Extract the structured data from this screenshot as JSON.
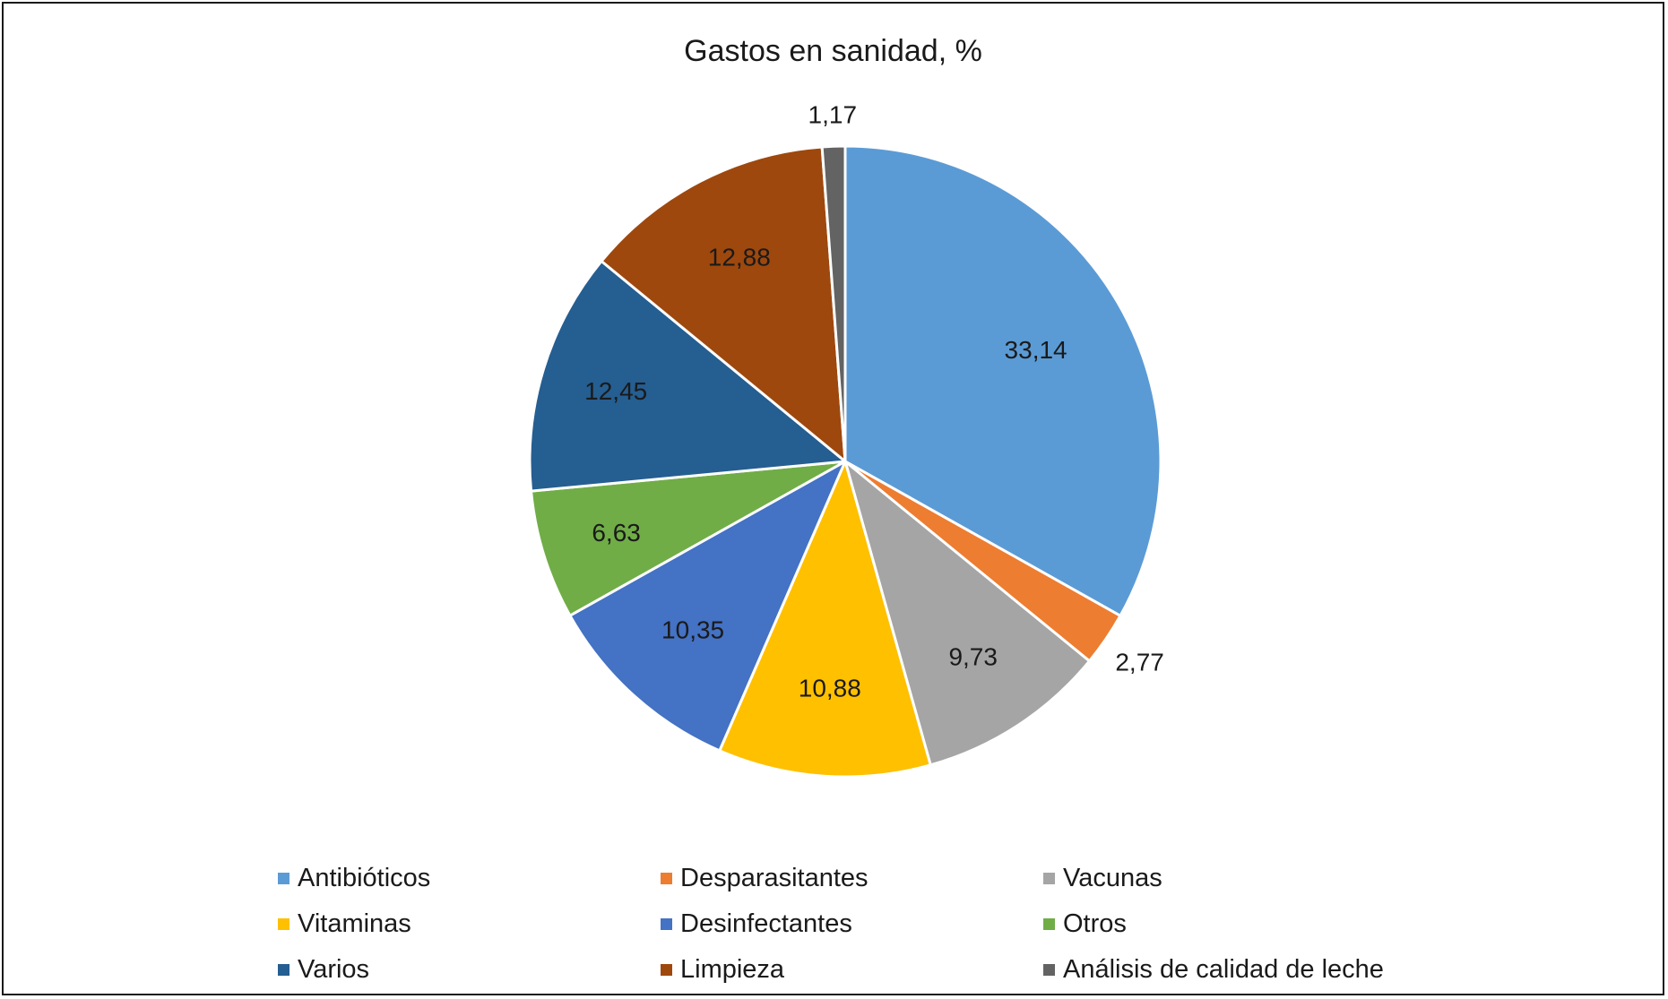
{
  "chart_data": {
    "type": "pie",
    "title": "Gastos en sanidad, %",
    "slices": [
      {
        "label": "Antibióticos",
        "value": 33.14,
        "display": "33,14",
        "color": "#5B9BD5"
      },
      {
        "label": "Desparasitantes",
        "value": 2.77,
        "display": "2,77",
        "color": "#ED7D31"
      },
      {
        "label": "Vacunas",
        "value": 9.73,
        "display": "9,73",
        "color": "#A5A5A5"
      },
      {
        "label": "Vitaminas",
        "value": 10.88,
        "display": "10,88",
        "color": "#FFC000"
      },
      {
        "label": "Desinfectantes",
        "value": 10.35,
        "display": "10,35",
        "color": "#4472C4"
      },
      {
        "label": "Otros",
        "value": 6.63,
        "display": "6,63",
        "color": "#70AD47"
      },
      {
        "label": "Varios",
        "value": 12.45,
        "display": "12,45",
        "color": "#255E91"
      },
      {
        "label": "Limpieza",
        "value": 12.88,
        "display": "12,88",
        "color": "#9E480E"
      },
      {
        "label": "Análisis de calidad de leche",
        "value": 1.17,
        "display": "1,17",
        "color": "#636363"
      }
    ],
    "start_angle": "12 o'clock",
    "direction": "clockwise",
    "legend_position": "bottom",
    "data_labels": true
  }
}
